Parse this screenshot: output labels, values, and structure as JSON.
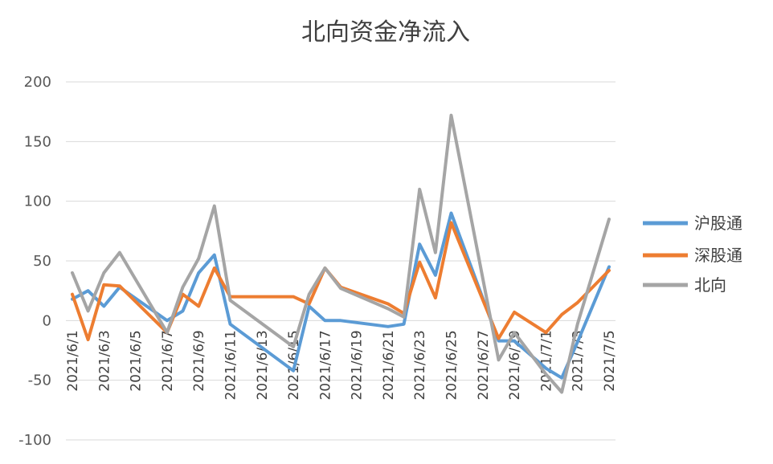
{
  "chart_data": {
    "type": "line",
    "title": "北向资金净流入",
    "xlabel": "",
    "ylabel": "",
    "ylim": [
      -100,
      200
    ],
    "y_ticks": [
      200,
      150,
      100,
      50,
      0,
      -50,
      -100
    ],
    "grid": true,
    "legend_position": "right",
    "x": [
      "2021/6/1",
      "2021/6/2",
      "2021/6/3",
      "2021/6/4",
      "2021/6/7",
      "2021/6/8",
      "2021/6/9",
      "2021/6/10",
      "2021/6/11",
      "2021/6/15",
      "2021/6/16",
      "2021/6/17",
      "2021/6/18",
      "2021/6/21",
      "2021/6/22",
      "2021/6/23",
      "2021/6/24",
      "2021/6/25",
      "2021/6/28",
      "2021/6/29",
      "2021/6/30",
      "2021/7/1",
      "2021/7/2",
      "2021/7/5"
    ],
    "x_tick_labels": [
      "2021/6/1",
      "2021/6/3",
      "2021/6/5",
      "2021/6/7",
      "2021/6/9",
      "2021/6/11",
      "2021/6/13",
      "2021/6/15",
      "2021/6/17",
      "2021/6/19",
      "2021/6/21",
      "2021/6/23",
      "2021/6/25",
      "2021/6/27",
      "2021/6/29",
      "2021/7/1",
      "2021/7/3",
      "2021/7/5"
    ],
    "series": [
      {
        "name": "沪股通",
        "color": "#5B9BD5",
        "points": [
          [
            "2021/6/1",
            18
          ],
          [
            "2021/6/2",
            25
          ],
          [
            "2021/6/3",
            12
          ],
          [
            "2021/6/4",
            28
          ],
          [
            "2021/6/7",
            0
          ],
          [
            "2021/6/8",
            8
          ],
          [
            "2021/6/9",
            40
          ],
          [
            "2021/6/10",
            55
          ],
          [
            "2021/6/11",
            -3
          ],
          [
            "2021/6/15",
            -42
          ],
          [
            "2021/6/16",
            12
          ],
          [
            "2021/6/17",
            0
          ],
          [
            "2021/6/18",
            0
          ],
          [
            "2021/6/21",
            -5
          ],
          [
            "2021/6/22",
            -3
          ],
          [
            "2021/6/23",
            64
          ],
          [
            "2021/6/24",
            38
          ],
          [
            "2021/6/25",
            90
          ],
          [
            "2021/6/28",
            -17
          ],
          [
            "2021/6/29",
            -17
          ],
          [
            "2021/7/1",
            -40
          ],
          [
            "2021/7/2",
            -48
          ],
          [
            "2021/7/3",
            -18
          ],
          [
            "2021/7/5",
            45
          ]
        ]
      },
      {
        "name": "深股通",
        "color": "#ED7D31",
        "points": [
          [
            "2021/6/1",
            22
          ],
          [
            "2021/6/2",
            -16
          ],
          [
            "2021/6/3",
            30
          ],
          [
            "2021/6/4",
            29
          ],
          [
            "2021/6/7",
            -10
          ],
          [
            "2021/6/8",
            22
          ],
          [
            "2021/6/9",
            12
          ],
          [
            "2021/6/10",
            44
          ],
          [
            "2021/6/11",
            20
          ],
          [
            "2021/6/15",
            20
          ],
          [
            "2021/6/16",
            14
          ],
          [
            "2021/6/17",
            44
          ],
          [
            "2021/6/18",
            28
          ],
          [
            "2021/6/21",
            14
          ],
          [
            "2021/6/22",
            6
          ],
          [
            "2021/6/23",
            49
          ],
          [
            "2021/6/24",
            19
          ],
          [
            "2021/6/25",
            82
          ],
          [
            "2021/6/28",
            -15
          ],
          [
            "2021/6/29",
            7
          ],
          [
            "2021/7/1",
            -10
          ],
          [
            "2021/7/2",
            5
          ],
          [
            "2021/7/3",
            15
          ],
          [
            "2021/7/5",
            42
          ]
        ]
      },
      {
        "name": "北向",
        "color": "#A5A5A5",
        "points": [
          [
            "2021/6/1",
            40
          ],
          [
            "2021/6/2",
            8
          ],
          [
            "2021/6/3",
            40
          ],
          [
            "2021/6/4",
            57
          ],
          [
            "2021/6/7",
            -10
          ],
          [
            "2021/6/8",
            28
          ],
          [
            "2021/6/9",
            52
          ],
          [
            "2021/6/10",
            96
          ],
          [
            "2021/6/11",
            17
          ],
          [
            "2021/6/15",
            -22
          ],
          [
            "2021/6/16",
            22
          ],
          [
            "2021/6/17",
            44
          ],
          [
            "2021/6/18",
            27
          ],
          [
            "2021/6/21",
            10
          ],
          [
            "2021/6/22",
            3
          ],
          [
            "2021/6/23",
            110
          ],
          [
            "2021/6/24",
            57
          ],
          [
            "2021/6/25",
            172
          ],
          [
            "2021/6/28",
            -33
          ],
          [
            "2021/6/29",
            -10
          ],
          [
            "2021/7/1",
            -45
          ],
          [
            "2021/7/2",
            -60
          ],
          [
            "2021/7/3",
            -3
          ],
          [
            "2021/7/5",
            85
          ]
        ]
      }
    ]
  }
}
